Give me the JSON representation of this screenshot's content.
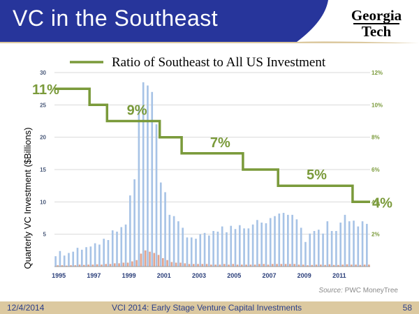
{
  "slide": {
    "title": "VC in the Southeast",
    "logo_line1": "Georgia",
    "logo_line2": "Tech",
    "source_label": "Source:",
    "source_name": "PWC MoneyTree",
    "footer_date": "12/4/2014",
    "footer_center": "VCI 2014: Early Stage Venture Capital Investments",
    "footer_page": "58"
  },
  "colors": {
    "header_blue": "#27359b",
    "ratio_line": "#7a9a3a",
    "bar_all_us": "#a7c3e6",
    "bar_southeast": "#e2a48e",
    "footer_bg": "#dcc9a0"
  },
  "chart_data": {
    "type": "bar",
    "legend": "Ratio of Southeast to All US Investment",
    "ylabel": "Quarterly VC Investment ($Billions)",
    "ylim": [
      0,
      30
    ],
    "y_ticks": [
      "5",
      "10",
      "15",
      "20",
      "25",
      "30"
    ],
    "y2lim": [
      0,
      12
    ],
    "y2_ticks": [
      "2%",
      "4%",
      "6%",
      "8%",
      "10%",
      "12%"
    ],
    "x_ticks": [
      "1995",
      "1997",
      "1999",
      "2001",
      "2003",
      "2005",
      "2007",
      "2009",
      "2011"
    ],
    "quarters_start": "1995",
    "series": [
      {
        "type": "bar",
        "values": [
          1.6,
          2.4,
          1.7,
          2.1,
          2.3,
          2.9,
          2.6,
          3.0,
          3.1,
          3.6,
          3.4,
          4.3,
          4.1,
          5.6,
          5.4,
          6.1,
          6.5,
          11.0,
          13.5,
          25.0,
          28.5,
          28.0,
          27.0,
          22.0,
          13.0,
          11.5,
          8.0,
          7.8,
          7.0,
          6.0,
          4.5,
          4.5,
          4.3,
          5.0,
          5.2,
          4.8,
          5.5,
          5.4,
          6.2,
          5.3,
          6.3,
          5.8,
          6.4,
          5.9,
          5.9,
          6.5,
          7.2,
          6.8,
          6.7,
          7.5,
          7.8,
          8.2,
          8.3,
          8.0,
          8.0,
          7.3,
          6.0,
          3.8,
          5.1,
          5.5,
          5.7,
          5.1,
          7.0,
          5.5,
          5.5,
          6.8,
          8.0,
          7.0,
          7.1,
          6.2,
          7.0,
          6.6
        ]
      },
      {
        "type": "bar",
        "values": [
          0.2,
          0.2,
          0.15,
          0.2,
          0.2,
          0.3,
          0.25,
          0.3,
          0.3,
          0.35,
          0.3,
          0.4,
          0.4,
          0.5,
          0.5,
          0.6,
          0.6,
          0.8,
          1.0,
          2.0,
          2.5,
          2.3,
          2.1,
          1.8,
          1.3,
          1.0,
          0.7,
          0.6,
          0.6,
          0.5,
          0.4,
          0.4,
          0.4,
          0.4,
          0.4,
          0.3,
          0.3,
          0.3,
          0.4,
          0.3,
          0.4,
          0.3,
          0.3,
          0.3,
          0.3,
          0.3,
          0.4,
          0.4,
          0.3,
          0.4,
          0.4,
          0.4,
          0.4,
          0.4,
          0.4,
          0.3,
          0.3,
          0.2,
          0.25,
          0.3,
          0.3,
          0.25,
          0.35,
          0.25,
          0.25,
          0.3,
          0.35,
          0.3,
          0.3,
          0.25,
          0.3,
          0.3
        ]
      },
      {
        "type": "line",
        "axis": "right",
        "values": [
          11,
          11,
          11,
          11,
          11,
          11,
          11,
          11,
          10,
          10,
          10,
          10,
          9,
          9,
          9,
          9,
          9,
          9,
          9,
          9,
          9,
          9,
          9,
          9,
          8,
          8,
          8,
          8,
          8,
          7,
          7,
          7,
          7,
          7,
          7,
          7,
          7,
          7,
          7,
          7,
          7,
          7,
          7,
          6,
          6,
          6,
          6,
          6,
          6,
          6,
          6,
          5,
          5,
          5,
          5,
          5,
          5,
          5,
          5,
          5,
          5,
          5,
          5,
          5,
          5,
          5,
          5,
          5,
          4,
          4,
          4,
          4
        ]
      }
    ],
    "ratio_labels": [
      {
        "text": "11%",
        "quarter": 0
      },
      {
        "text": "9%",
        "quarter": 16
      },
      {
        "text": "7%",
        "quarter": 35
      },
      {
        "text": "5%",
        "quarter": 57
      },
      {
        "text": "4%",
        "quarter": 73
      }
    ]
  }
}
